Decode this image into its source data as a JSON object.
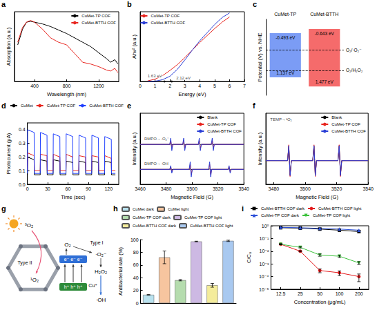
{
  "chart_data": [
    {
      "panel": "a",
      "type": "line",
      "x_label": "Wavelength (nm)",
      "y_label": "Absorption (a.u.)",
      "x": [
        190,
        250,
        300,
        350,
        400,
        450,
        500,
        600,
        700,
        800,
        900,
        1000,
        1100,
        1200,
        1300,
        1350,
        1400,
        1440
      ],
      "xlim": [
        150,
        1450
      ],
      "xticks": [
        400,
        800,
        1200
      ],
      "ylim": [
        0,
        0.8
      ],
      "tick_labels": "x",
      "grid": false,
      "legend": "upper right",
      "series": [
        {
          "name": "CuMet-TP COF",
          "color": "#000000",
          "values": [
            0.42,
            0.6,
            0.68,
            0.69,
            0.68,
            0.67,
            0.66,
            0.63,
            0.59,
            0.55,
            0.5,
            0.45,
            0.4,
            0.33,
            0.26,
            0.22,
            0.25,
            0.2
          ]
        },
        {
          "name": "CuMet-BTTH COF",
          "color": "#e8251f",
          "values": [
            0.45,
            0.62,
            0.68,
            0.7,
            0.68,
            0.64,
            0.6,
            0.5,
            0.45,
            0.42,
            0.32,
            0.22,
            0.2,
            0.17,
            0.13,
            0.12,
            0.15,
            0.1
          ]
        }
      ]
    },
    {
      "panel": "b",
      "type": "line",
      "x_label": "Energy (eV)",
      "y_label": "Ahv² (a.u.)",
      "x": [
        0.5,
        1.0,
        1.5,
        2.0,
        2.5,
        3.0,
        3.5,
        4.0,
        4.5,
        5.0,
        5.5,
        6.0
      ],
      "xlim": [
        0,
        7
      ],
      "xticks": [
        0,
        1,
        2,
        3,
        4,
        5,
        6,
        7
      ],
      "ylim": [
        0,
        12
      ],
      "tick_labels": "x",
      "grid": false,
      "legend": "upper left",
      "series": [
        {
          "name": "CuMet-TP COF",
          "color": "#e8251f",
          "values": [
            0.1,
            0.4,
            1.0,
            1.9,
            2.9,
            4.1,
            5.4,
            6.7,
            7.9,
            9.1,
            10.2,
            11.1
          ]
        },
        {
          "name": "CuMet-BTTH COF",
          "color": "#2b3fd6",
          "values": [
            0,
            0.05,
            0.3,
            0.9,
            2.1,
            3.7,
            5.4,
            7.0,
            8.4,
            9.8,
            11.0,
            11.8
          ]
        }
      ],
      "annotations": [
        {
          "text": "1.63 eV",
          "x": 1.63,
          "y": 0,
          "marker": "circle"
        },
        {
          "text": "2.12 eV",
          "x": 2.12,
          "y": 0,
          "marker": "circle"
        }
      ]
    },
    {
      "panel": "c",
      "type": "band",
      "y_label": "Potential (V) vs. NHE",
      "ylim": [
        -1,
        1.8
      ],
      "tick_labels": false,
      "grid": false,
      "series": [
        {
          "name": "CuMet-TP",
          "color": "#7b9cf5",
          "values": [
            -0.493,
            1.137
          ],
          "value_labels": [
            "-0.493 eV",
            "1.137 eV"
          ]
        },
        {
          "name": "CuMet-BTTH",
          "color": "#f56b6b",
          "values": [
            -0.643,
            1.477
          ],
          "value_labels": [
            "-0.643 eV",
            "1.477 eV"
          ]
        }
      ],
      "reference_lines": [
        {
          "value": 0.12,
          "label": "O₂/·O₂⁻"
        },
        {
          "value": 0.88,
          "label": "O₂/H₂O₂"
        }
      ]
    },
    {
      "panel": "d",
      "type": "line",
      "x_label": "Time (sec)",
      "y_label": "Photocurrent (μA)",
      "x": [
        0,
        0.3,
        10,
        10.3,
        19,
        19.3,
        29,
        29.3,
        38,
        38.3,
        48,
        48.3,
        57,
        57.3,
        67,
        67.3,
        76,
        76.3,
        86,
        86.3,
        95,
        95.3,
        105,
        105.3,
        114,
        114.3,
        124,
        124.3,
        130
      ],
      "xlim": [
        0,
        135
      ],
      "xticks": [
        0,
        30,
        60,
        90,
        120
      ],
      "ylim": [
        0,
        0.45
      ],
      "yticks": [
        {
          "value": 0,
          "label": "0.0"
        },
        0.1,
        0.2,
        0.3,
        0.4
      ],
      "grid": false,
      "legend": "top",
      "series": [
        {
          "name": "CuMet",
          "color": "#000000",
          "values": [
            0.07,
            0.2,
            0.18,
            0.07,
            0.07,
            0.18,
            0.17,
            0.07,
            0.07,
            0.18,
            0.17,
            0.07,
            0.07,
            0.17,
            0.16,
            0.07,
            0.07,
            0.17,
            0.16,
            0.07,
            0.07,
            0.17,
            0.16,
            0.07,
            0.07,
            0.17,
            0.16,
            0.07,
            0.07
          ]
        },
        {
          "name": "CuMet-TP COF",
          "color": "#e8251f",
          "values": [
            0.1,
            0.23,
            0.21,
            0.1,
            0.1,
            0.22,
            0.21,
            0.1,
            0.1,
            0.22,
            0.2,
            0.1,
            0.1,
            0.22,
            0.2,
            0.1,
            0.1,
            0.21,
            0.2,
            0.1,
            0.1,
            0.21,
            0.2,
            0.1,
            0.1,
            0.21,
            0.19,
            0.1,
            0.1
          ]
        },
        {
          "name": "CuMet-BTTH COF",
          "color": "#1f3fff",
          "values": [
            0.08,
            0.4,
            0.38,
            0.08,
            0.08,
            0.38,
            0.36,
            0.08,
            0.08,
            0.37,
            0.35,
            0.08,
            0.08,
            0.37,
            0.35,
            0.08,
            0.08,
            0.36,
            0.34,
            0.08,
            0.08,
            0.36,
            0.34,
            0.08,
            0.08,
            0.35,
            0.33,
            0.08,
            0.08
          ]
        }
      ]
    },
    {
      "panel": "e",
      "type": "line",
      "x_label": "Magnetic Field (G)",
      "y_label": "Intensity (a.u.)",
      "xlim": [
        3460,
        3540
      ],
      "xticks": [
        3460,
        3480,
        3500,
        3520,
        3540
      ],
      "ylim": [
        -1.2,
        4.5
      ],
      "tick_labels": "x",
      "grid": false,
      "legend": "upper right",
      "series": [
        {
          "name": "Blank",
          "color": "#000000",
          "x": [
            3460,
            3482.8,
            3483.6,
            3484.4,
            3485.2,
            3492.8,
            3493.6,
            3494.4,
            3495.2,
            3504.8,
            3505.6,
            3506.4,
            3507.2,
            3514.8,
            3515.6,
            3516.4,
            3517.2,
            3540
          ],
          "values": [
            2,
            2,
            2.04,
            1.96,
            2,
            2,
            2.04,
            1.96,
            2,
            2,
            2.04,
            1.96,
            2,
            2,
            2.04,
            1.96,
            2,
            2
          ]
        },
        {
          "name": "CuMet-TP COF",
          "color": "#e8251f",
          "x": [
            3460,
            3482.8,
            3483.6,
            3484.4,
            3485.2,
            3492.8,
            3493.6,
            3494.4,
            3495.2,
            3504.8,
            3505.6,
            3506.4,
            3507.2,
            3514.8,
            3515.6,
            3516.4,
            3517.2,
            3540
          ],
          "values": [
            2,
            2,
            2.3,
            1.7,
            2,
            2,
            2.3,
            1.7,
            2,
            2,
            2.3,
            1.7,
            2,
            2,
            2.3,
            1.7,
            2,
            2
          ]
        },
        {
          "name": "CuMet-BTTH COF",
          "color": "#2b3fd6",
          "x": [
            3460,
            3482.8,
            3483.6,
            3484.4,
            3485.2,
            3492.8,
            3493.6,
            3494.4,
            3495.2,
            3504.8,
            3505.6,
            3506.4,
            3507.2,
            3514.8,
            3515.6,
            3516.4,
            3517.2,
            3540
          ],
          "values": [
            2,
            2,
            2.5,
            1.5,
            2,
            2,
            2.5,
            1.5,
            2,
            2,
            2.5,
            1.5,
            2,
            2,
            2.5,
            1.5,
            2,
            2
          ]
        },
        {
          "name": "Blank",
          "color": "#000000",
          "x": [
            3460,
            3482.8,
            3483.6,
            3484.4,
            3485.2,
            3497.8,
            3498.6,
            3499.4,
            3500.2,
            3512.8,
            3513.6,
            3514.4,
            3515.2,
            3527.8,
            3528.6,
            3529.4,
            3530.2,
            3540
          ],
          "values": [
            0,
            0,
            0.03,
            -0.03,
            0,
            0,
            0.03,
            -0.03,
            0,
            0,
            0.03,
            -0.03,
            0,
            0,
            0.03,
            -0.03,
            0,
            0
          ]
        },
        {
          "name": "CuMet-TP COF",
          "color": "#e8251f",
          "x": [
            3460,
            3482.8,
            3483.6,
            3484.4,
            3485.2,
            3497.8,
            3498.6,
            3499.4,
            3500.2,
            3512.8,
            3513.6,
            3514.4,
            3515.2,
            3527.8,
            3528.6,
            3529.4,
            3530.2,
            3540
          ],
          "values": [
            0,
            0,
            0.2,
            -0.2,
            0,
            0,
            0.4,
            -0.4,
            0,
            0,
            0.4,
            -0.4,
            0,
            0,
            0.2,
            -0.2,
            0,
            0
          ]
        },
        {
          "name": "CuMet-BTTH COF",
          "color": "#2b3fd6",
          "x": [
            3460,
            3482.8,
            3483.6,
            3484.4,
            3485.2,
            3497.8,
            3498.6,
            3499.4,
            3500.2,
            3512.8,
            3513.6,
            3514.4,
            3515.2,
            3527.8,
            3528.6,
            3529.4,
            3530.2,
            3540
          ],
          "values": [
            0,
            0,
            0.3,
            -0.3,
            0,
            0,
            0.6,
            -0.6,
            0,
            0,
            0.6,
            -0.6,
            0,
            0,
            0.3,
            -0.3,
            0,
            0
          ]
        }
      ],
      "annotations": [
        {
          "text": "DMPO→·O₂⁻",
          "x": 3461,
          "y": 2.45
        },
        {
          "text": "DMPO→·OH",
          "x": 3461,
          "y": 0.45
        }
      ]
    },
    {
      "panel": "f",
      "type": "line",
      "x_label": "Magnetic Field (G)",
      "y_label": "Intensity (a.u.)",
      "x": [
        3475,
        3488.8,
        3489.6,
        3490.4,
        3491.2,
        3504.8,
        3505.6,
        3506.4,
        3507.2,
        3520.8,
        3521.6,
        3522.4,
        3523.2,
        3540
      ],
      "xlim": [
        3475,
        3540
      ],
      "xticks": [
        3480,
        3500,
        3520,
        3540
      ],
      "ylim": [
        -1.5,
        3
      ],
      "tick_labels": "x",
      "grid": false,
      "legend": "upper right",
      "series": [
        {
          "name": "Blank",
          "color": "#000000",
          "values": [
            0,
            0,
            0.9,
            -0.9,
            0,
            0,
            0.9,
            -0.9,
            0,
            0,
            0.9,
            -0.9,
            0,
            0
          ]
        },
        {
          "name": "CuMet-TP COF",
          "color": "#e8251f",
          "values": [
            0,
            0,
            1.0,
            -1.0,
            0,
            0,
            1.0,
            -1.0,
            0,
            0,
            1.0,
            -1.0,
            0,
            0
          ]
        },
        {
          "name": "CuMet-BTTH COF",
          "color": "#2b3fd6",
          "values": [
            0,
            0,
            0.95,
            -0.95,
            0,
            0,
            0.95,
            -0.95,
            0,
            0,
            0.95,
            -0.95,
            0,
            0
          ]
        }
      ],
      "annotations": [
        {
          "text": "TEMP→¹O₂",
          "x": 3476,
          "y": 2.6
        }
      ]
    },
    {
      "panel": "g",
      "type": "diagram",
      "labels": {
        "triplet": "³O₂",
        "type2": "Type II",
        "singlet": "¹O₂",
        "oxygen": "O₂",
        "type1": "Type I",
        "electrons": "e⁻ e⁻ e⁻",
        "holes": "h⁺ h⁺ h⁺",
        "superoxide": "·O₂⁻",
        "peroxide": "H₂O₂",
        "copper": "Cu⁺",
        "hydroxyl": "·OH"
      }
    },
    {
      "panel": "h",
      "type": "bar",
      "y_label": "Antibacterial rate (%)",
      "categories": [
        null,
        null,
        null,
        null,
        null,
        null
      ],
      "ylim": [
        0,
        100
      ],
      "yticks": [
        0,
        20,
        40,
        60,
        80,
        100
      ],
      "tick_labels": "y",
      "grid": false,
      "legend": "top",
      "series": [
        {
          "name": "CuMet dark",
          "color": "#b9e2ef",
          "values": [
            13,
            null,
            null,
            null,
            null,
            null
          ],
          "errors": [
            0.5,
            null,
            null,
            null,
            null,
            null
          ]
        },
        {
          "name": "CuMet light",
          "color": "#f7c59f",
          "values": [
            null,
            72,
            null,
            null,
            null,
            null
          ],
          "errors": [
            null,
            10,
            null,
            null,
            null,
            null
          ]
        },
        {
          "name": "CuMet-TP COF dark",
          "color": "#b5dcae",
          "values": [
            null,
            null,
            36,
            null,
            null,
            null
          ],
          "errors": [
            null,
            null,
            1,
            null,
            null,
            null
          ]
        },
        {
          "name": "CuMet-TP COF light",
          "color": "#cdb9e3",
          "values": [
            null,
            null,
            null,
            97,
            null,
            null
          ],
          "errors": [
            null,
            null,
            null,
            0.5,
            null,
            null
          ]
        },
        {
          "name": "CuMet-BTTH COF dark",
          "color": "#f4ec9b",
          "values": [
            null,
            null,
            null,
            null,
            28,
            null
          ],
          "errors": [
            null,
            null,
            null,
            null,
            3,
            null
          ]
        },
        {
          "name": "CuMet-BTTH COF light",
          "color": "#a9c9f0",
          "values": [
            null,
            null,
            null,
            null,
            null,
            98
          ],
          "errors": [
            null,
            null,
            null,
            null,
            null,
            1
          ]
        }
      ]
    },
    {
      "panel": "i",
      "type": "line",
      "x_label": "Concentration (μg/mL)",
      "y_label": "C/C₀",
      "categories": [
        12.5,
        25,
        50,
        100,
        200
      ],
      "log": "y",
      "ylim": [
        1e-05,
        1
      ],
      "yticks": [
        {
          "value": 1e-05,
          "label": "10⁻⁵"
        },
        {
          "value": 0.0001,
          "label": "10⁻⁴"
        },
        {
          "value": 0.001,
          "label": "10⁻³"
        },
        {
          "value": 0.01,
          "label": "10⁻²"
        },
        {
          "value": 0.1,
          "label": "10⁻¹"
        },
        {
          "value": 1,
          "label": "10⁰"
        }
      ],
      "grid": false,
      "legend": "top",
      "series": [
        {
          "name": "CuMet-BTTH COF dark",
          "color": "#000000",
          "marker": "square",
          "values": [
            0.7,
            0.65,
            0.55,
            0.45,
            0.35
          ]
        },
        {
          "name": "CuMet-BTTH COF light",
          "color": "#e31a1c",
          "marker": "circle",
          "values": [
            0.035,
            0.01,
            0.0003,
            0.0002,
            0.0001
          ],
          "errors": [
            0.003,
            0.001,
            0.0001,
            8e-05,
            6e-05
          ]
        },
        {
          "name": "CuMet-TP COF dark",
          "color": "#2b4fd8",
          "marker": "triangle",
          "values": [
            0.75,
            0.7,
            0.62,
            0.55,
            0.45
          ]
        },
        {
          "name": "CuMet-TP COF light",
          "color": "#3cc23c",
          "marker": "triangle_down",
          "values": [
            0.035,
            0.02,
            0.005,
            0.004,
            0.0012
          ],
          "errors": [
            0.003,
            0.002,
            0.001,
            0.0008,
            0.0003
          ]
        }
      ]
    }
  ]
}
